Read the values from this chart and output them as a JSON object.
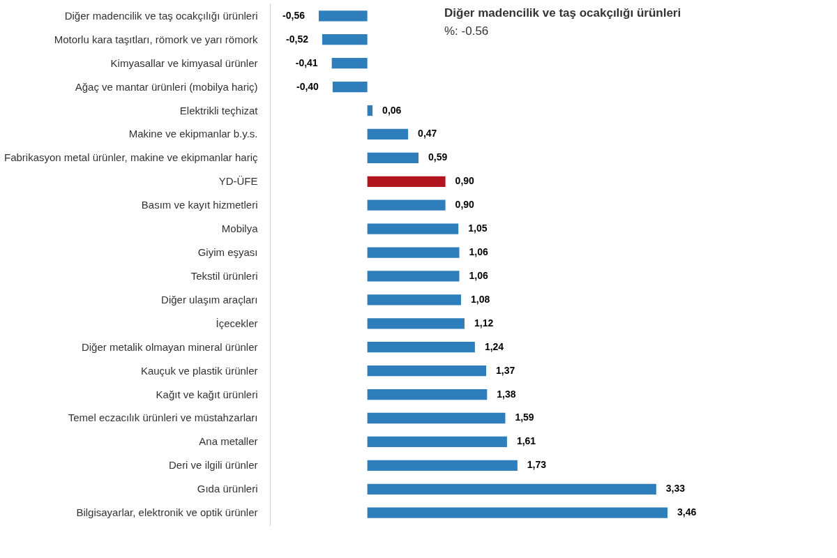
{
  "chart_data": {
    "type": "bar",
    "orientation": "horizontal",
    "categories": [
      "Diğer madencilik ve taş ocakçılığı ürünleri",
      "Motorlu kara taşıtları, römork ve yarı römork",
      "Kimyasallar ve kimyasal ürünler",
      "Ağaç ve mantar ürünleri (mobilya hariç)",
      "Elektrikli teçhizat",
      "Makine ve ekipmanlar b.y.s.",
      "Fabrikasyon metal ürünler, makine ve ekipmanlar hariç",
      "YD-ÜFE",
      "Basım ve kayıt hizmetleri",
      "Mobilya",
      "Giyim eşyası",
      "Tekstil ürünleri",
      "Diğer ulaşım araçları",
      "İçecekler",
      "Diğer metalik olmayan mineral ürünler",
      "Kauçuk ve plastik ürünler",
      "Kağıt ve kağıt ürünleri",
      "Temel eczacılık ürünleri ve müstahzarları",
      "Ana metaller",
      "Deri ve ilgili ürünler",
      "Gıda ürünleri",
      "Bilgisayarlar, elektronik ve optik ürünler"
    ],
    "values": [
      -0.56,
      -0.52,
      -0.41,
      -0.4,
      0.06,
      0.47,
      0.59,
      0.9,
      0.9,
      1.05,
      1.06,
      1.06,
      1.08,
      1.12,
      1.24,
      1.37,
      1.38,
      1.59,
      1.61,
      1.73,
      3.33,
      3.46
    ],
    "value_labels": [
      "-0,56",
      "-0,52",
      "-0,41",
      "-0,40",
      "0,06",
      "0,47",
      "0,59",
      "0,90",
      "0,90",
      "1,05",
      "1,06",
      "1,06",
      "1,08",
      "1,12",
      "1,24",
      "1,37",
      "1,38",
      "1,59",
      "1,61",
      "1,73",
      "3,33",
      "3,46"
    ],
    "colors": [
      "#2f7ebc",
      "#2f7ebc",
      "#2f7ebc",
      "#2f7ebc",
      "#2f7ebc",
      "#2f7ebc",
      "#2f7ebc",
      "#b0141c",
      "#2f7ebc",
      "#2f7ebc",
      "#2f7ebc",
      "#2f7ebc",
      "#2f7ebc",
      "#2f7ebc",
      "#2f7ebc",
      "#2f7ebc",
      "#2f7ebc",
      "#2f7ebc",
      "#2f7ebc",
      "#2f7ebc",
      "#2f7ebc",
      "#2f7ebc"
    ],
    "annotations": [
      "Diğer madencilik ve taş ocakçılığı ürünleri",
      "%: -0.56"
    ],
    "grid": false,
    "legend": false
  }
}
